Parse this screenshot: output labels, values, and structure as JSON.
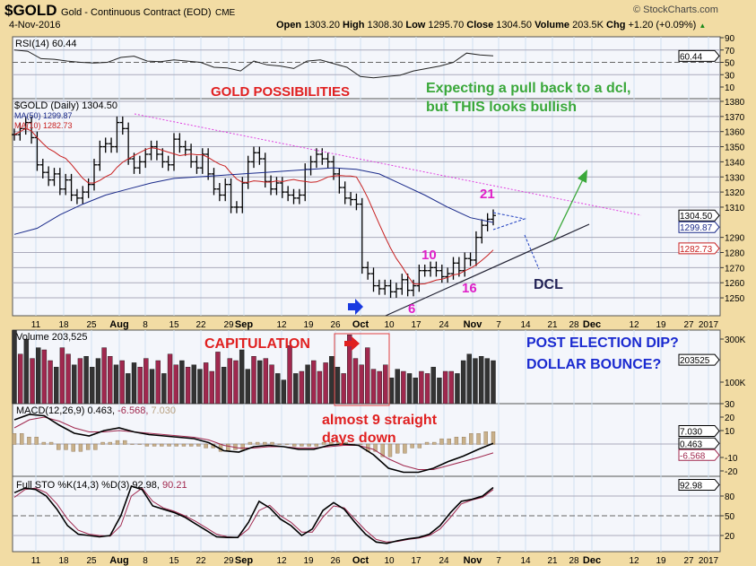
{
  "header": {
    "symbol": "$GOLD",
    "name": "Gold - Continuous Contract (EOD)",
    "exchange": "CME",
    "date": "4-Nov-2016",
    "brand": "© StockCharts.com",
    "quote": {
      "open_label": "Open",
      "open": "1303.20",
      "high_label": "High",
      "high": "1308.30",
      "low_label": "Low",
      "low": "1295.70",
      "close_label": "Close",
      "close": "1304.50",
      "volume_label": "Volume",
      "volume": "203.5K",
      "chg_label": "Chg",
      "chg": "+1.20 (+0.09%)"
    }
  },
  "colors": {
    "up": "#000000",
    "down": "#a0284e",
    "ma50": "#1a2a8a",
    "ma10": "#c82020",
    "bg": "#f2dca4",
    "panel": "#f4f6fb",
    "grid": "#cfe0f0"
  },
  "chart_data": {
    "type": "line",
    "x_ticks": [
      "11",
      "18",
      "25",
      "Aug",
      "8",
      "15",
      "22",
      "29",
      "Sep",
      "12",
      "19",
      "26",
      "Oct",
      "10",
      "17",
      "24",
      "Nov",
      "7",
      "14",
      "21",
      "28",
      "Dec",
      "12",
      "19",
      "27",
      "2017"
    ],
    "rsi": {
      "label": "RSI(14) 60.44",
      "last": "60.44",
      "ticks": [
        "90",
        "70",
        "50",
        "30",
        "10"
      ],
      "values": [
        70,
        68,
        56,
        55,
        52,
        50,
        49,
        50,
        58,
        60,
        52,
        51,
        54,
        52,
        50,
        42,
        41,
        36,
        52,
        46,
        44,
        40,
        52,
        54,
        48,
        42,
        27,
        25,
        27,
        29,
        36,
        40,
        44,
        50,
        65,
        62,
        60.44
      ]
    },
    "price": {
      "label": "$GOLD (Daily) 1304.50",
      "ma50_label": "MA(50) 1299.87",
      "ma10_label": "MA(10) 1282.73",
      "last": "1304.50",
      "ma50_last": "1299.87",
      "ma10_last": "1282.73",
      "ylim": [
        1240,
        1385
      ],
      "ticks": [
        "1380",
        "1370",
        "1360",
        "1350",
        "1340",
        "1330",
        "1320",
        "1310",
        "1290",
        "1280",
        "1270",
        "1260",
        "1250"
      ],
      "closes": [
        1358,
        1362,
        1366,
        1356,
        1338,
        1333,
        1328,
        1332,
        1322,
        1328,
        1318,
        1316,
        1320,
        1325,
        1338,
        1350,
        1352,
        1350,
        1366,
        1362,
        1342,
        1336,
        1340,
        1345,
        1350,
        1345,
        1340,
        1338,
        1355,
        1350,
        1348,
        1340,
        1336,
        1345,
        1332,
        1322,
        1318,
        1325,
        1310,
        1310,
        1326,
        1340,
        1346,
        1342,
        1327,
        1322,
        1326,
        1320,
        1318,
        1316,
        1318,
        1335,
        1340,
        1345,
        1342,
        1340,
        1332,
        1323,
        1316,
        1315,
        1312,
        1270,
        1266,
        1258,
        1256,
        1258,
        1254,
        1256,
        1262,
        1255,
        1258,
        1268,
        1268,
        1270,
        1268,
        1264,
        1266,
        1273,
        1268,
        1276,
        1275,
        1290,
        1298,
        1302,
        1304.5
      ],
      "ma50": [
        1292,
        1296,
        1305,
        1312,
        1318,
        1322,
        1326,
        1329,
        1330,
        1331,
        1332,
        1333,
        1334,
        1335,
        1336,
        1335,
        1332,
        1325,
        1318,
        1310,
        1303,
        1299.87
      ]
    },
    "volume": {
      "label": "Volume 203,525",
      "last": "203525",
      "ticks": [
        "300K",
        "100K"
      ],
      "values": [
        340,
        230,
        300,
        210,
        260,
        250,
        200,
        170,
        260,
        230,
        180,
        210,
        220,
        170,
        210,
        260,
        220,
        180,
        200,
        140,
        190,
        170,
        210,
        160,
        200,
        140,
        230,
        180,
        200,
        170,
        180,
        160,
        190,
        150,
        240,
        170,
        210,
        200,
        250,
        160,
        220,
        200,
        210,
        180,
        140,
        110,
        270,
        140,
        150,
        180,
        200,
        150,
        190,
        220,
        170,
        140,
        320,
        210,
        180,
        260,
        160,
        150,
        180,
        120,
        160,
        150,
        140,
        120,
        150,
        140,
        170,
        120,
        150,
        150,
        140,
        200,
        230,
        210,
        220,
        210,
        200
      ],
      "down": [
        0,
        1,
        0,
        1,
        0,
        1,
        1,
        0,
        1,
        1,
        0,
        1,
        0,
        0,
        0,
        1,
        1,
        0,
        1,
        0,
        0,
        1,
        1,
        0,
        1,
        0,
        1,
        1,
        0,
        1,
        0,
        0,
        1,
        1,
        1,
        0,
        1,
        1,
        0,
        0,
        1,
        0,
        1,
        1,
        0,
        0,
        1,
        0,
        1,
        0,
        1,
        1,
        1,
        0,
        0,
        1,
        1,
        1,
        1,
        1,
        1,
        1,
        1,
        0,
        0,
        1,
        0,
        0,
        1,
        1,
        0,
        0,
        1,
        1,
        0,
        0,
        0,
        0,
        0,
        0,
        0
      ]
    },
    "macd": {
      "label": "MACD(12,26,9) 0.463, ",
      "sig": "-6.568, ",
      "hist": "7.030",
      "ticks": [
        "30",
        "20",
        "10",
        "-10",
        "-20"
      ],
      "last_macd": "0.463",
      "last_sig": "-6.568",
      "last_hist": "7.030",
      "macd": [
        18,
        22,
        21,
        14,
        8,
        6,
        10,
        12,
        9,
        7,
        6,
        5,
        4,
        1,
        -5,
        -6,
        -2,
        -1,
        -2,
        -4,
        -4,
        -1,
        0,
        -1,
        -8,
        -18,
        -21,
        -21,
        -18,
        -13,
        -9,
        -4,
        0.463
      ],
      "signal": [
        12,
        18,
        20,
        17,
        12,
        9,
        9,
        10,
        9,
        8,
        7,
        6,
        5,
        3,
        -1,
        -3,
        -3,
        -2,
        -2,
        -3,
        -3,
        -2,
        -1,
        -1,
        -4,
        -11,
        -16,
        -19,
        -19,
        -16,
        -13,
        -10,
        -6.568
      ]
    },
    "sto": {
      "label": "Full STO %K(14,3) %D(3) 92.98, ",
      "d_label": "90.21",
      "last": "92.98",
      "ticks": [
        "80",
        "50",
        "20"
      ],
      "k": [
        85,
        92,
        90,
        80,
        60,
        35,
        22,
        20,
        18,
        20,
        50,
        95,
        90,
        65,
        60,
        55,
        48,
        38,
        28,
        18,
        17,
        17,
        40,
        72,
        62,
        45,
        35,
        20,
        30,
        58,
        70,
        60,
        40,
        22,
        10,
        8,
        12,
        15,
        17,
        22,
        35,
        55,
        72,
        75,
        80,
        93
      ],
      "d": [
        78,
        90,
        92,
        85,
        68,
        45,
        28,
        22,
        20,
        19,
        35,
        80,
        92,
        72,
        62,
        57,
        50,
        42,
        32,
        22,
        18,
        17,
        30,
        58,
        66,
        50,
        40,
        25,
        25,
        48,
        65,
        62,
        45,
        28,
        14,
        10,
        11,
        14,
        16,
        20,
        30,
        48,
        68,
        74,
        78,
        90
      ]
    }
  },
  "annotations": {
    "gold_possibilities": "GOLD POSSIBILITIES",
    "expecting_line1": "Expecting a pull back to a dcl,",
    "expecting_line2": "but THIS looks bullish",
    "n21": "21",
    "n10": "10",
    "n16": "16",
    "n6": "6",
    "dcl": "DCL",
    "capitulation": "CAPITULATION",
    "post_election": "POST ELECTION DIP?",
    "dollar_bounce": "DOLLAR BOUNCE?",
    "almost9": "almost 9 straight",
    "days_down": "days down"
  }
}
